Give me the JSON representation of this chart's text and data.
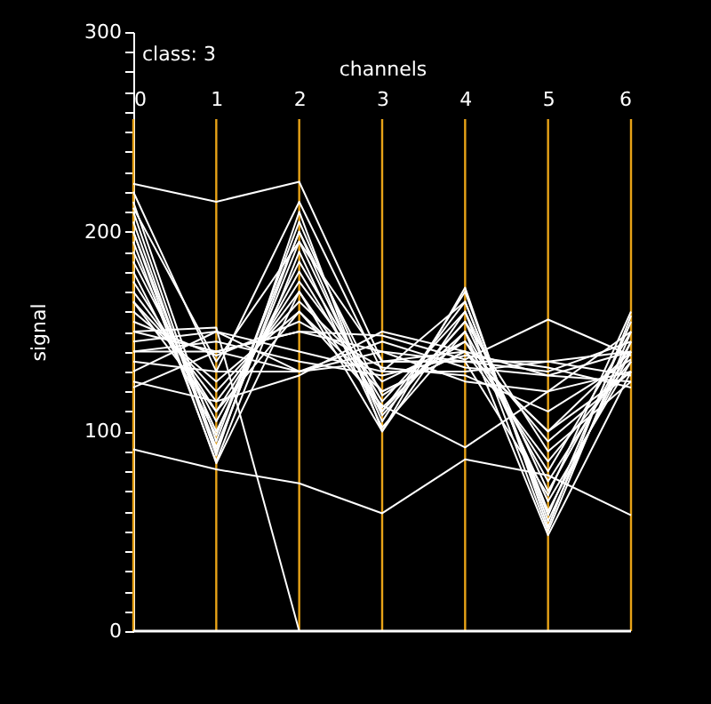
{
  "chart_data": {
    "type": "line",
    "title": "class: 3",
    "xlabel": "channels",
    "ylabel": "signal",
    "x": [
      0,
      1,
      2,
      3,
      4,
      5,
      6
    ],
    "xlim": [
      0,
      6
    ],
    "xticks": [
      0,
      1,
      2,
      3,
      4,
      5,
      6
    ],
    "ylim": [
      0,
      300
    ],
    "yticks": [
      0,
      {
        "value": 10,
        "label": null
      },
      {
        "value": 20,
        "label": null
      },
      {
        "value": 30,
        "label": null
      },
      {
        "value": 40,
        "label": null
      },
      {
        "value": 50,
        "label": null
      },
      {
        "value": 60,
        "label": null
      },
      {
        "value": 70,
        "label": null
      },
      {
        "value": 80,
        "label": null
      },
      {
        "value": 90,
        "label": null
      },
      100,
      {
        "value": 110,
        "label": null
      },
      {
        "value": 120,
        "label": null
      },
      {
        "value": 130,
        "label": null
      },
      {
        "value": 140,
        "label": null
      },
      {
        "value": 150,
        "label": null
      },
      {
        "value": 160,
        "label": null
      },
      {
        "value": 170,
        "label": null
      },
      {
        "value": 180,
        "label": null
      },
      {
        "value": 190,
        "label": null
      },
      200,
      {
        "value": 210,
        "label": null
      },
      {
        "value": 220,
        "label": null
      },
      {
        "value": 230,
        "label": null
      },
      {
        "value": 240,
        "label": null
      },
      {
        "value": 250,
        "label": null
      },
      {
        "value": 260,
        "label": null
      },
      {
        "value": 270,
        "label": null
      },
      {
        "value": 280,
        "label": null
      },
      {
        "value": 290,
        "label": null
      },
      300
    ],
    "grid": "x",
    "legend": false,
    "series": [
      {
        "color": "#ffffff",
        "values": [
          215,
          95,
          205,
          110,
          165,
          60,
          140
        ]
      },
      {
        "color": "#ffffff",
        "values": [
          210,
          90,
          200,
          105,
          170,
          55,
          145
        ]
      },
      {
        "color": "#ffffff",
        "values": [
          205,
          88,
          210,
          100,
          160,
          50,
          150
        ]
      },
      {
        "color": "#ffffff",
        "values": [
          200,
          92,
          195,
          108,
          155,
          65,
          135
        ]
      },
      {
        "color": "#ffffff",
        "values": [
          195,
          85,
          190,
          102,
          150,
          48,
          130
        ]
      },
      {
        "color": "#ffffff",
        "values": [
          190,
          100,
          185,
          115,
          160,
          70,
          145
        ]
      },
      {
        "color": "#ffffff",
        "values": [
          185,
          105,
          180,
          112,
          150,
          75,
          140
        ]
      },
      {
        "color": "#ffffff",
        "values": [
          180,
          98,
          200,
          118,
          145,
          80,
          150
        ]
      },
      {
        "color": "#ffffff",
        "values": [
          175,
          110,
          175,
          120,
          140,
          85,
          135
        ]
      },
      {
        "color": "#ffffff",
        "values": [
          170,
          115,
          170,
          110,
          155,
          90,
          125
        ]
      },
      {
        "color": "#ffffff",
        "values": [
          165,
          120,
          165,
          125,
          145,
          95,
          130
        ]
      },
      {
        "color": "#ffffff",
        "values": [
          160,
          125,
          160,
          120,
          140,
          100,
          140
        ]
      },
      {
        "color": "#ffffff",
        "values": [
          220,
          130,
          215,
          130,
          165,
          58,
          155
        ]
      },
      {
        "color": "#ffffff",
        "values": [
          212,
          135,
          195,
          135,
          135,
          68,
          160
        ]
      },
      {
        "color": "#ffffff",
        "values": [
          150,
          140,
          150,
          140,
          135,
          130,
          145
        ]
      },
      {
        "color": "#ffffff",
        "values": [
          145,
          150,
          140,
          130,
          130,
          135,
          128
        ]
      },
      {
        "color": "#ffffff",
        "values": [
          140,
          145,
          135,
          128,
          138,
          132,
          122
        ]
      },
      {
        "color": "#ffffff",
        "values": [
          135,
          130,
          130,
          145,
          132,
          128,
          140
        ]
      },
      {
        "color": "#ffffff",
        "values": [
          130,
          150,
          130,
          140,
          125,
          120,
          150
        ]
      },
      {
        "color": "#ffffff",
        "values": [
          155,
          138,
          155,
          132,
          128,
          110,
          136
        ]
      },
      {
        "color": "#ffffff",
        "values": [
          200,
          84,
          170,
          100,
          172,
          52,
          158
        ]
      },
      {
        "color": "#ffffff",
        "values": [
          125,
          115,
          128,
          150,
          140,
          128,
          125
        ]
      },
      {
        "color": "#ffffff",
        "values": [
          224,
          215,
          225,
          135,
          140,
          100,
          130
        ]
      },
      {
        "color": "#ffffff",
        "values": [
          91,
          81,
          74,
          59,
          86,
          78,
          58
        ]
      },
      {
        "color": "#ffffff",
        "values": [
          150,
          152,
          0,
          0,
          0,
          0,
          0
        ]
      },
      {
        "color": "#ffffff",
        "values": [
          140,
          140,
          150,
          148,
          136,
          156,
          138
        ]
      },
      {
        "color": "#ffffff",
        "values": [
          165,
          110,
          160,
          113,
          92,
          120,
          130
        ]
      },
      {
        "color": "#ffffff",
        "values": [
          122,
          140,
          130,
          135,
          135,
          135,
          140
        ]
      }
    ]
  }
}
